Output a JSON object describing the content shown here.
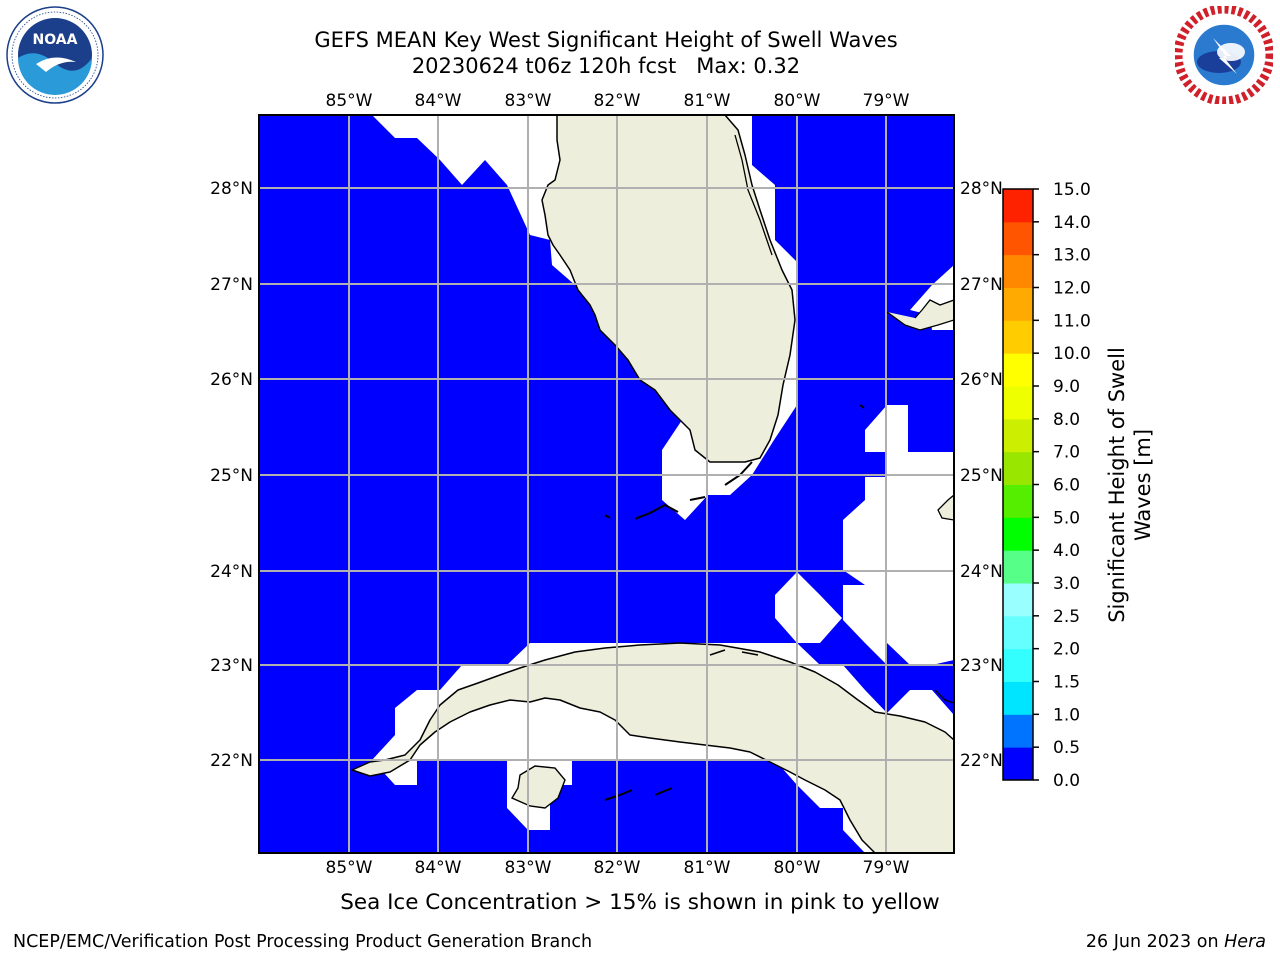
{
  "header": {
    "title_line1": "GEFS MEAN Key West Significant Height of Swell Waves",
    "title_line2": "20230624 t06z 120h fcst   Max: 0.32"
  },
  "logos": {
    "left": {
      "name": "noaa-logo",
      "text": "NOAA",
      "ring_text": "NATIONAL OCEANIC AND ATMOSPHERIC ADMINISTRATION · U.S. DEPARTMENT OF COMMERCE"
    },
    "right": {
      "name": "nws-logo",
      "ring_text": "NATIONAL WEATHER SERVICE"
    }
  },
  "map": {
    "lon_ticks": [
      "85°W",
      "84°W",
      "83°W",
      "82°W",
      "81°W",
      "80°W",
      "79°W"
    ],
    "lat_ticks": [
      "28°N",
      "27°N",
      "26°N",
      "25°N",
      "24°N",
      "23°N",
      "22°N"
    ],
    "colors": {
      "ocean": "#0000ff",
      "land": "#eeeedc",
      "nodata": "#ffffff",
      "grid": "#b0b0b0",
      "coast": "#000000"
    }
  },
  "colorbar": {
    "label": "Significant Height of Swell Waves [m]",
    "label_line1": "Significant Height of Swell",
    "label_line2": "Waves [m]",
    "ticks": [
      "0.0",
      "0.5",
      "1.0",
      "1.5",
      "2.0",
      "2.5",
      "3.0",
      "4.0",
      "5.0",
      "6.0",
      "7.0",
      "8.0",
      "9.0",
      "10.0",
      "11.0",
      "12.0",
      "13.0",
      "14.0",
      "15.0"
    ],
    "colors": [
      "#0000ff",
      "#0073ff",
      "#00e5ff",
      "#33ffff",
      "#66ffff",
      "#99ffff",
      "#55ff88",
      "#00ff00",
      "#55ee00",
      "#99e600",
      "#ccee00",
      "#eeff00",
      "#ffff00",
      "#ffcc00",
      "#ffaa00",
      "#ff8800",
      "#ff5500",
      "#ff2200",
      "#ff0000"
    ]
  },
  "footer": {
    "note": "Sea Ice Concentration > 15% is shown in pink to yellow",
    "credit_left": "NCEP/EMC/Verification Post Processing Product Generation Branch",
    "credit_date": "26 Jun 2023 on",
    "credit_host": "Hera"
  }
}
